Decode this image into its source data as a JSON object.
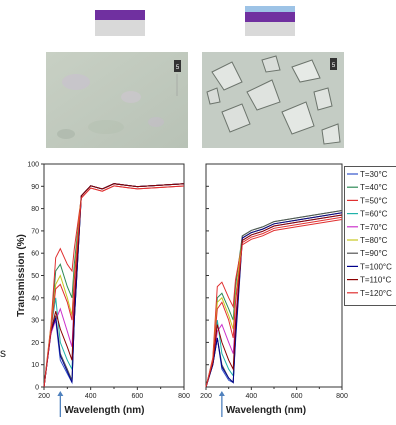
{
  "film_schematics": [
    {
      "layers": [
        {
          "color": "#7030a0"
        },
        {
          "color": "#d9d9d9"
        }
      ]
    },
    {
      "layers": [
        {
          "color": "#9dc3e6"
        },
        {
          "color": "#7030a0"
        },
        {
          "color": "#d9d9d9"
        }
      ]
    }
  ],
  "micrographs": [
    {
      "description": "smooth film, few faint features",
      "scale_label": "5"
    },
    {
      "description": "film with many angular crystals",
      "scale_label": "5"
    }
  ],
  "colors": {
    "axis": "#333333",
    "arrow": "#4f81bd",
    "legend_border": "#555555"
  },
  "chart_data": [
    {
      "type": "line",
      "ylabel": "Transmission (%)",
      "xlabel": "Wavelength (nm)",
      "xlim": [
        200,
        800
      ],
      "ylim": [
        0,
        100
      ],
      "xticks": [
        "200",
        "400",
        "600",
        "800"
      ],
      "yticks": [
        "0",
        "10",
        "20",
        "30",
        "40",
        "50",
        "60",
        "70",
        "80",
        "90",
        "100"
      ],
      "arrow_x": 270,
      "series": [
        {
          "name": "T=30°C",
          "color": "#3355cc",
          "y": [
            0,
            25,
            30,
            12,
            6,
            2,
            30,
            86,
            90,
            89,
            91,
            90,
            91
          ]
        },
        {
          "name": "T=40°C",
          "color": "#2e8b57",
          "y": [
            0,
            26,
            52,
            55,
            45,
            40,
            55,
            86,
            90,
            89,
            91,
            90,
            91
          ]
        },
        {
          "name": "T=50°C",
          "color": "#e03030",
          "y": [
            0,
            28,
            58,
            62,
            55,
            52,
            62,
            85,
            89,
            88,
            90,
            89,
            90
          ]
        },
        {
          "name": "T=60°C",
          "color": "#20b2aa",
          "y": [
            0,
            26,
            40,
            20,
            12,
            8,
            35,
            86,
            90,
            89,
            91,
            90,
            91
          ]
        },
        {
          "name": "T=70°C",
          "color": "#cc33cc",
          "y": [
            0,
            24,
            30,
            35,
            25,
            18,
            40,
            86,
            90,
            89,
            91,
            90,
            91
          ]
        },
        {
          "name": "T=80°C",
          "color": "#c8c820",
          "y": [
            0,
            27,
            46,
            50,
            40,
            32,
            50,
            86,
            90,
            89,
            91,
            90,
            91
          ]
        },
        {
          "name": "T=90°C",
          "color": "#555555",
          "y": [
            0,
            25,
            32,
            15,
            8,
            3,
            30,
            86,
            90,
            89,
            91,
            90,
            91
          ]
        },
        {
          "name": "T=100°C",
          "color": "#00008b",
          "y": [
            0,
            25,
            31,
            14,
            7,
            2,
            30,
            86,
            90,
            89,
            91,
            90,
            91
          ]
        },
        {
          "name": "T=110°C",
          "color": "#8b0000",
          "y": [
            0,
            25,
            34,
            26,
            18,
            12,
            38,
            86,
            90,
            89,
            91,
            90,
            91
          ]
        },
        {
          "name": "T=120°C",
          "color": "#e03030",
          "y": [
            0,
            26,
            44,
            46,
            38,
            30,
            48,
            85,
            89,
            88,
            90,
            89,
            90
          ]
        }
      ],
      "x": [
        200,
        230,
        250,
        270,
        300,
        320,
        330,
        360,
        400,
        450,
        500,
        600,
        800
      ]
    },
    {
      "type": "line",
      "xlabel": "Wavelength (nm)",
      "xlim": [
        200,
        800
      ],
      "ylim": [
        0,
        100
      ],
      "xticks": [
        "200",
        "400",
        "600",
        "800"
      ],
      "arrow_x": 270,
      "series": [
        {
          "name": "T=30°C",
          "color": "#3355cc",
          "y": [
            0,
            10,
            22,
            8,
            3,
            2,
            20,
            66,
            68,
            70,
            72,
            74,
            77
          ]
        },
        {
          "name": "T=40°C",
          "color": "#2e8b57",
          "y": [
            0,
            12,
            40,
            42,
            35,
            30,
            45,
            68,
            70,
            72,
            74,
            76,
            79
          ]
        },
        {
          "name": "T=50°C",
          "color": "#e03030",
          "y": [
            0,
            13,
            45,
            47,
            40,
            36,
            48,
            65,
            67,
            69,
            71,
            73,
            76
          ]
        },
        {
          "name": "T=60°C",
          "color": "#20b2aa",
          "y": [
            0,
            11,
            30,
            15,
            8,
            5,
            25,
            67,
            69,
            71,
            73,
            75,
            78
          ]
        },
        {
          "name": "T=70°C",
          "color": "#cc33cc",
          "y": [
            0,
            10,
            25,
            28,
            20,
            15,
            30,
            67,
            69,
            71,
            73,
            75,
            78
          ]
        },
        {
          "name": "T=80°C",
          "color": "#c8c820",
          "y": [
            0,
            12,
            38,
            40,
            32,
            26,
            40,
            67,
            69,
            71,
            73,
            75,
            78
          ]
        },
        {
          "name": "T=90°C",
          "color": "#555555",
          "y": [
            0,
            10,
            22,
            10,
            4,
            2,
            22,
            68,
            70,
            72,
            74,
            76,
            79
          ]
        },
        {
          "name": "T=100°C",
          "color": "#00008b",
          "y": [
            0,
            10,
            22,
            9,
            4,
            2,
            22,
            67,
            69,
            71,
            73,
            75,
            78
          ]
        },
        {
          "name": "T=110°C",
          "color": "#8b0000",
          "y": [
            0,
            11,
            28,
            20,
            12,
            8,
            28,
            66,
            68,
            70,
            72,
            74,
            77
          ]
        },
        {
          "name": "T=120°C",
          "color": "#e03030",
          "y": [
            0,
            12,
            35,
            38,
            30,
            22,
            38,
            64,
            66,
            68,
            70,
            72,
            75
          ]
        }
      ],
      "x": [
        200,
        230,
        250,
        270,
        300,
        320,
        330,
        360,
        400,
        450,
        500,
        600,
        800
      ]
    }
  ],
  "legend": {
    "labels": [
      "T=30°C",
      "T=40°C",
      "T=50°C",
      "T=60°C",
      "T=70°C",
      "T=80°C",
      "T=90°C",
      "T=100°C",
      "T=110°C",
      "T=120°C"
    ],
    "colors": [
      "#3355cc",
      "#2e8b57",
      "#e03030",
      "#20b2aa",
      "#cc33cc",
      "#c8c820",
      "#555555",
      "#00008b",
      "#8b0000",
      "#e03030"
    ]
  },
  "stray_text": "s"
}
